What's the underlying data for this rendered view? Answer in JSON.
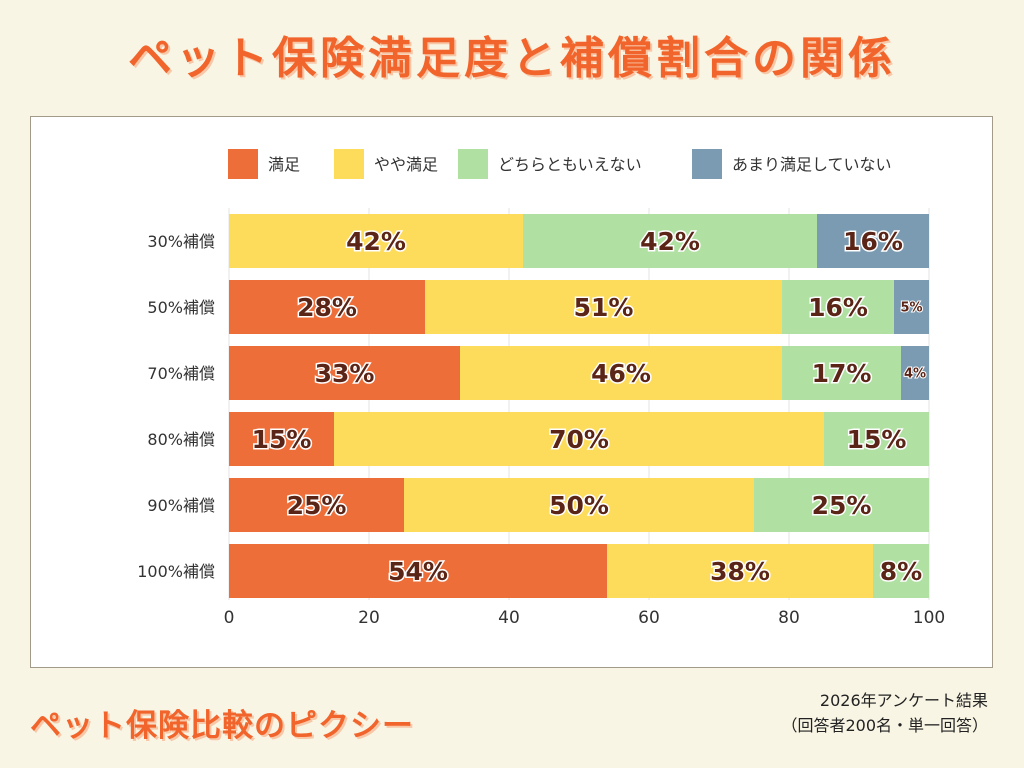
{
  "title": "ペット保険満足度と補償割合の関係",
  "brand": "ペット保険比較のピクシー",
  "note_line1": "2026年アンケート結果",
  "note_line2": "（回答者200名・単一回答）",
  "chart_data": {
    "type": "bar",
    "orientation": "horizontal",
    "stacked": true,
    "categories": [
      "30%補償",
      "50%補償",
      "70%補償",
      "80%補償",
      "90%補償",
      "100%補償"
    ],
    "series": [
      {
        "name": "満足",
        "color": "#ee6e3a",
        "values": [
          0,
          28,
          33,
          15,
          25,
          54
        ]
      },
      {
        "name": "やや満足",
        "color": "#fddc5c",
        "values": [
          42,
          51,
          46,
          70,
          50,
          38
        ]
      },
      {
        "name": "どちらともいえない",
        "color": "#b0e1a3",
        "values": [
          42,
          16,
          17,
          15,
          25,
          8
        ]
      },
      {
        "name": "あまり満足していない",
        "color": "#7a9bb2",
        "values": [
          16,
          5,
          4,
          0,
          0,
          0
        ]
      }
    ],
    "xlim": [
      0,
      100
    ],
    "xticks": [
      0,
      20,
      40,
      60,
      80,
      100
    ],
    "value_suffix": "%",
    "legend_position": "top",
    "grid": true
  }
}
